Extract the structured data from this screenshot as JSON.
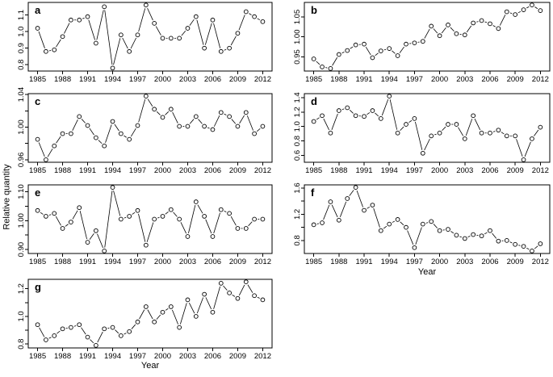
{
  "chart_data": {
    "type": "line",
    "title": "",
    "ylabel": "Relative quantity",
    "xlabel": "Year",
    "point_style": "open-circle",
    "line_style": "thin segments with gaps at markers (R type='b')",
    "colors": {
      "axis": "#000000",
      "line": "#000000",
      "marker_stroke": "#000000",
      "marker_fill": "#ffffff",
      "background": "#ffffff"
    },
    "x": [
      1985,
      1986,
      1987,
      1988,
      1989,
      1990,
      1991,
      1992,
      1993,
      1994,
      1995,
      1996,
      1997,
      1998,
      1999,
      2000,
      2001,
      2002,
      2003,
      2004,
      2005,
      2006,
      2007,
      2008,
      2009,
      2010,
      2011,
      2012
    ],
    "xticks": [
      1985,
      1988,
      1991,
      1994,
      1997,
      2000,
      2003,
      2006,
      2009,
      2012
    ],
    "xtick_labels": [
      "1985",
      "1988",
      "1991",
      "1994",
      "1997",
      "2000",
      "2003",
      "2006",
      "2009",
      "2012"
    ],
    "xlim": [
      1983.88,
      2013.12
    ],
    "panels": [
      {
        "label": "a",
        "ylim": [
          0.762,
          1.176
        ],
        "yticks": [
          {
            "v": 0.8,
            "label": "0.8"
          },
          {
            "v": 0.9,
            "label": "0.9"
          },
          {
            "v": 1.0,
            "label": "1.0"
          },
          {
            "v": 1.1,
            "label": "1.1"
          }
        ],
        "values": [
          1.02,
          0.88,
          0.89,
          0.97,
          1.07,
          1.07,
          1.09,
          0.93,
          1.15,
          0.78,
          0.98,
          0.88,
          0.98,
          1.16,
          1.05,
          0.96,
          0.96,
          0.96,
          1.02,
          1.09,
          0.9,
          1.07,
          0.88,
          0.9,
          0.99,
          1.12,
          1.09,
          1.06
        ]
      },
      {
        "label": "b",
        "ylim": [
          0.9146,
          1.0864
        ],
        "yticks": [
          {
            "v": 0.95,
            "label": "0.95"
          },
          {
            "v": 1.0,
            "label": "1.00"
          },
          {
            "v": 1.05,
            "label": "1.05"
          }
        ],
        "values": [
          0.945,
          0.925,
          0.921,
          0.956,
          0.966,
          0.98,
          0.982,
          0.948,
          0.965,
          0.971,
          0.953,
          0.982,
          0.985,
          0.989,
          1.027,
          1.003,
          1.03,
          1.008,
          1.005,
          1.035,
          1.041,
          1.033,
          1.021,
          1.063,
          1.056,
          1.068,
          1.08,
          1.066
        ]
      },
      {
        "label": "c",
        "ylim": [
          0.9569,
          1.0411
        ],
        "yticks": [
          {
            "v": 0.96,
            "label": "0.96"
          },
          {
            "v": 0.98,
            "label": ""
          },
          {
            "v": 1.0,
            "label": "1.00"
          },
          {
            "v": 1.02,
            "label": ""
          },
          {
            "v": 1.04,
            "label": "1.04"
          }
        ],
        "values": [
          0.985,
          0.96,
          0.977,
          0.992,
          0.992,
          1.013,
          1.002,
          0.987,
          0.977,
          1.007,
          0.992,
          0.985,
          1.002,
          1.038,
          1.022,
          1.012,
          1.022,
          1.001,
          1.001,
          1.013,
          1.001,
          0.997,
          1.018,
          1.013,
          1.001,
          1.018,
          0.992,
          1.001
        ]
      },
      {
        "label": "d",
        "ylim": [
          0.5048,
          1.4552
        ],
        "yticks": [
          {
            "v": 0.6,
            "label": "0.6"
          },
          {
            "v": 0.8,
            "label": "0.8"
          },
          {
            "v": 1.0,
            "label": "1.0"
          },
          {
            "v": 1.2,
            "label": "1.2"
          },
          {
            "v": 1.4,
            "label": "1.4"
          }
        ],
        "values": [
          1.07,
          1.15,
          0.91,
          1.22,
          1.26,
          1.15,
          1.14,
          1.22,
          1.11,
          1.42,
          0.91,
          1.03,
          1.11,
          0.63,
          0.87,
          0.91,
          1.03,
          1.03,
          0.83,
          1.15,
          0.91,
          0.91,
          0.95,
          0.87,
          0.87,
          0.54,
          0.83,
          0.99
        ]
      },
      {
        "label": "e",
        "ylim": [
          0.8862,
          1.1238
        ],
        "yticks": [
          {
            "v": 0.9,
            "label": "0.90"
          },
          {
            "v": 0.95,
            "label": ""
          },
          {
            "v": 1.0,
            "label": "1.00"
          },
          {
            "v": 1.05,
            "label": ""
          },
          {
            "v": 1.1,
            "label": "1.10"
          }
        ],
        "values": [
          1.035,
          1.015,
          1.025,
          0.973,
          0.995,
          1.045,
          0.925,
          0.965,
          0.895,
          1.115,
          1.005,
          1.015,
          1.035,
          0.915,
          1.005,
          1.015,
          1.038,
          1.005,
          0.945,
          1.065,
          1.015,
          0.945,
          1.038,
          1.025,
          0.973,
          0.973,
          1.005,
          1.005
        ]
      },
      {
        "label": "f",
        "ylim": [
          0.6012,
          1.6488
        ],
        "yticks": [
          {
            "v": 0.8,
            "label": "0.8"
          },
          {
            "v": 1.0,
            "label": ""
          },
          {
            "v": 1.2,
            "label": "1.2"
          },
          {
            "v": 1.4,
            "label": ""
          },
          {
            "v": 1.6,
            "label": "1.6"
          }
        ],
        "values": [
          1.04,
          1.07,
          1.39,
          1.11,
          1.44,
          1.61,
          1.26,
          1.34,
          0.95,
          1.05,
          1.12,
          1.0,
          0.69,
          1.05,
          1.09,
          0.95,
          0.97,
          0.88,
          0.83,
          0.89,
          0.87,
          0.95,
          0.79,
          0.8,
          0.74,
          0.71,
          0.64,
          0.75
        ]
      },
      {
        "label": "g",
        "ylim": [
          0.7716,
          1.2684
        ],
        "yticks": [
          {
            "v": 0.8,
            "label": "0.8"
          },
          {
            "v": 0.9,
            "label": ""
          },
          {
            "v": 1.0,
            "label": "1.0"
          },
          {
            "v": 1.1,
            "label": ""
          },
          {
            "v": 1.2,
            "label": "1.2"
          }
        ],
        "values": [
          0.94,
          0.83,
          0.86,
          0.91,
          0.92,
          0.94,
          0.85,
          0.79,
          0.91,
          0.92,
          0.86,
          0.89,
          0.96,
          1.07,
          0.96,
          1.03,
          1.07,
          0.92,
          1.12,
          1.0,
          1.16,
          1.03,
          1.24,
          1.17,
          1.13,
          1.25,
          1.15,
          1.12
        ]
      }
    ]
  }
}
